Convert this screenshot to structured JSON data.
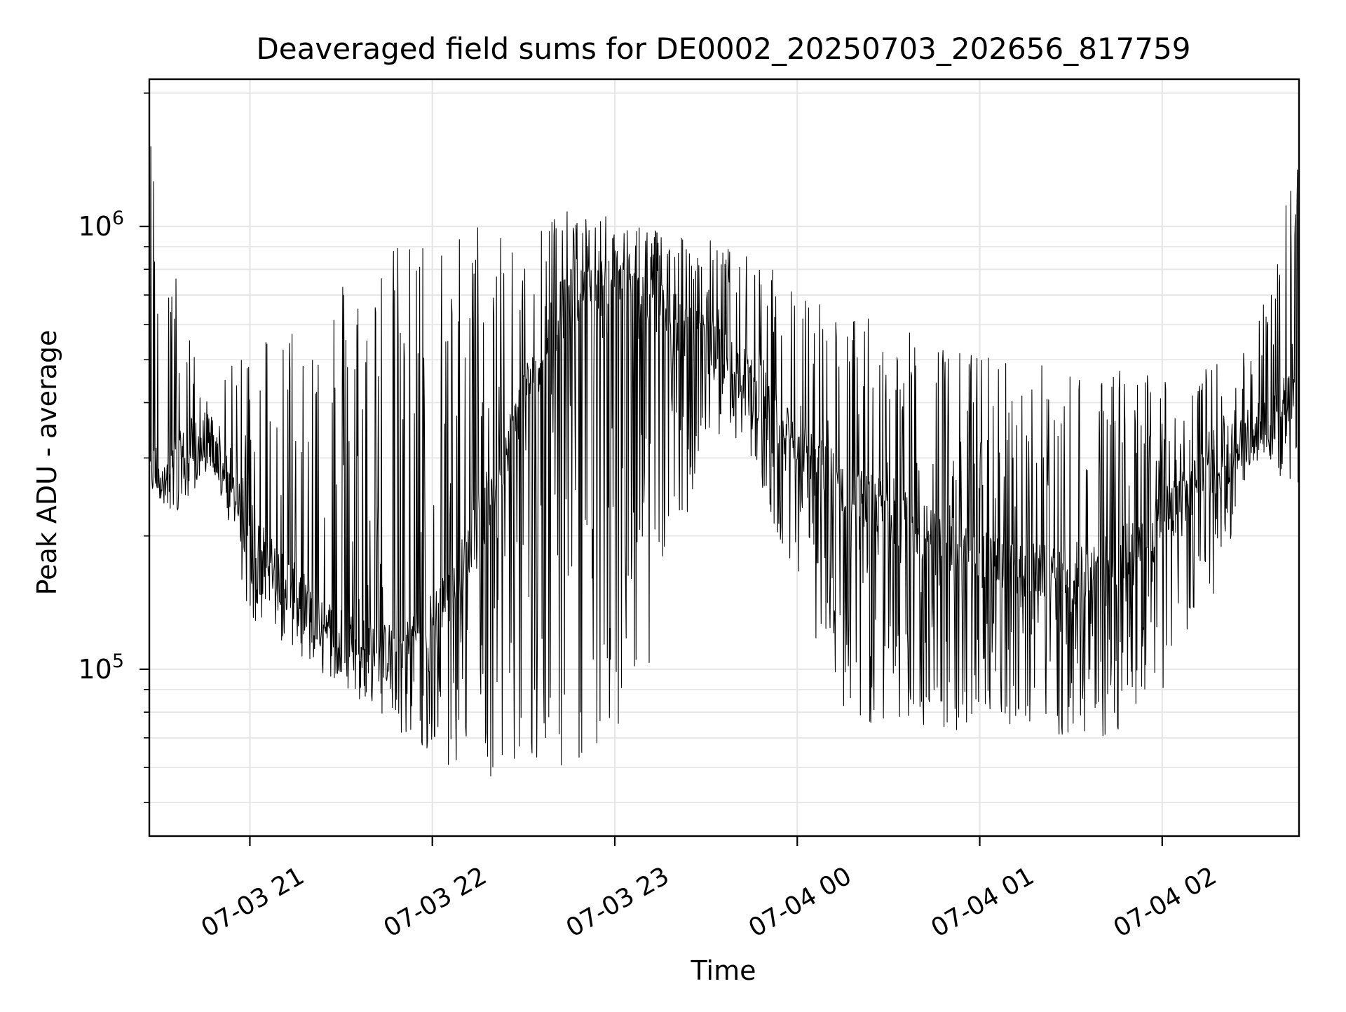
{
  "chart_data": {
    "type": "line",
    "title": "Deaveraged field sums for DE0002_20250703_202656_817759",
    "xlabel": "Time",
    "ylabel": "Peak ADU - average",
    "yscale": "log",
    "ylim": [
      42000,
      2150000
    ],
    "xlim": [
      "07-03 20:26:56",
      "07-04 02:45:00"
    ],
    "grid": true,
    "x_ticks": [
      {
        "label": "07-03 21",
        "hours": 21
      },
      {
        "label": "07-03 22",
        "hours": 22
      },
      {
        "label": "07-03 23",
        "hours": 23
      },
      {
        "label": "07-04 00",
        "hours": 24
      },
      {
        "label": "07-04 01",
        "hours": 25
      },
      {
        "label": "07-04 02",
        "hours": 26
      }
    ],
    "y_ticks": [
      {
        "base": "10",
        "exp": "5",
        "value": 100000
      },
      {
        "base": "10",
        "exp": "6",
        "value": 1000000
      }
    ],
    "series": [
      {
        "color": "#000000",
        "x": [
          "07-03 20:27",
          "07-03 20:37",
          "07-03 20:47",
          "07-03 21:00",
          "07-03 21:15",
          "07-03 21:30",
          "07-03 21:45",
          "07-03 22:00",
          "07-03 22:15",
          "07-03 22:30",
          "07-03 22:45",
          "07-03 23:00",
          "07-03 23:15",
          "07-03 23:30",
          "07-03 23:45",
          "07-04 00:00",
          "07-04 00:15",
          "07-04 00:30",
          "07-04 00:45",
          "07-04 01:00",
          "07-04 01:15",
          "07-04 01:30",
          "07-04 01:45",
          "07-04 02:00",
          "07-04 02:15",
          "07-04 02:30",
          "07-04 02:45"
        ],
        "baseline": [
          280000,
          300000,
          330000,
          200000,
          150000,
          120000,
          110000,
          130000,
          200000,
          420000,
          700000,
          750000,
          650000,
          550000,
          450000,
          330000,
          260000,
          230000,
          200000,
          180000,
          170000,
          160000,
          180000,
          220000,
          280000,
          340000,
          450000
        ],
        "upper_envelope": [
          1800000,
          700000,
          380000,
          600000,
          650000,
          800000,
          900000,
          1000000,
          1050000,
          1100000,
          1080000,
          1050000,
          1000000,
          950000,
          850000,
          750000,
          650000,
          600000,
          550000,
          520000,
          500000,
          480000,
          480000,
          470000,
          480000,
          550000,
          1600000
        ],
        "lower_envelope": [
          250000,
          220000,
          300000,
          130000,
          110000,
          90000,
          75000,
          60000,
          58000,
          55000,
          58000,
          65000,
          120000,
          350000,
          300000,
          150000,
          80000,
          70000,
          70000,
          75000,
          75000,
          70000,
          70000,
          90000,
          130000,
          300000,
          250000
        ]
      }
    ]
  }
}
